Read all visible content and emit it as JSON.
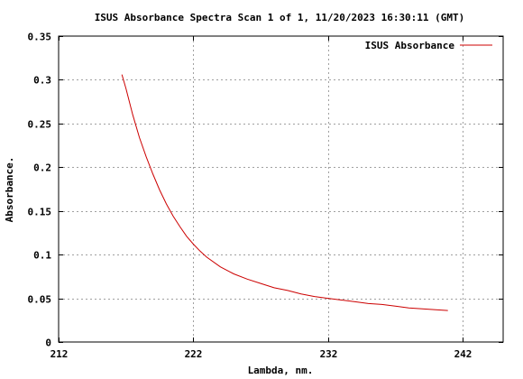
{
  "chart_data": {
    "type": "line",
    "title": "ISUS Absorbance Spectra Scan 1 of 1, 11/20/2023 16:30:11 (GMT)",
    "xlabel": "Lambda, nm.",
    "ylabel": "Absorbance.",
    "xlim": [
      212,
      245
    ],
    "ylim": [
      0,
      0.35
    ],
    "xticks": [
      212,
      222,
      232,
      242
    ],
    "xtick_labels": [
      "212",
      "222",
      "232",
      "242"
    ],
    "yticks": [
      0,
      0.05,
      0.1,
      0.15,
      0.2,
      0.25,
      0.3,
      0.35
    ],
    "ytick_labels": [
      "0",
      "0.05",
      "0.1",
      "0.15",
      "0.2",
      "0.25",
      "0.3",
      "0.35"
    ],
    "grid": true,
    "legend_position": "top-right",
    "series": [
      {
        "name": "ISUS Absorbance",
        "color": "#cc0000",
        "x": [
          216.7,
          217,
          217.5,
          218,
          218.5,
          219,
          219.5,
          220,
          220.5,
          221,
          221.5,
          222,
          222.5,
          223,
          224,
          225,
          226,
          227,
          228,
          229,
          230,
          231,
          232,
          233,
          234,
          235,
          236,
          237,
          238,
          239,
          240,
          240.9
        ],
        "y": [
          0.306,
          0.29,
          0.26,
          0.234,
          0.212,
          0.192,
          0.174,
          0.158,
          0.144,
          0.132,
          0.121,
          0.112,
          0.104,
          0.097,
          0.086,
          0.078,
          0.072,
          0.067,
          0.062,
          0.059,
          0.055,
          0.052,
          0.05,
          0.048,
          0.046,
          0.044,
          0.043,
          0.041,
          0.039,
          0.038,
          0.037,
          0.036
        ]
      }
    ]
  }
}
